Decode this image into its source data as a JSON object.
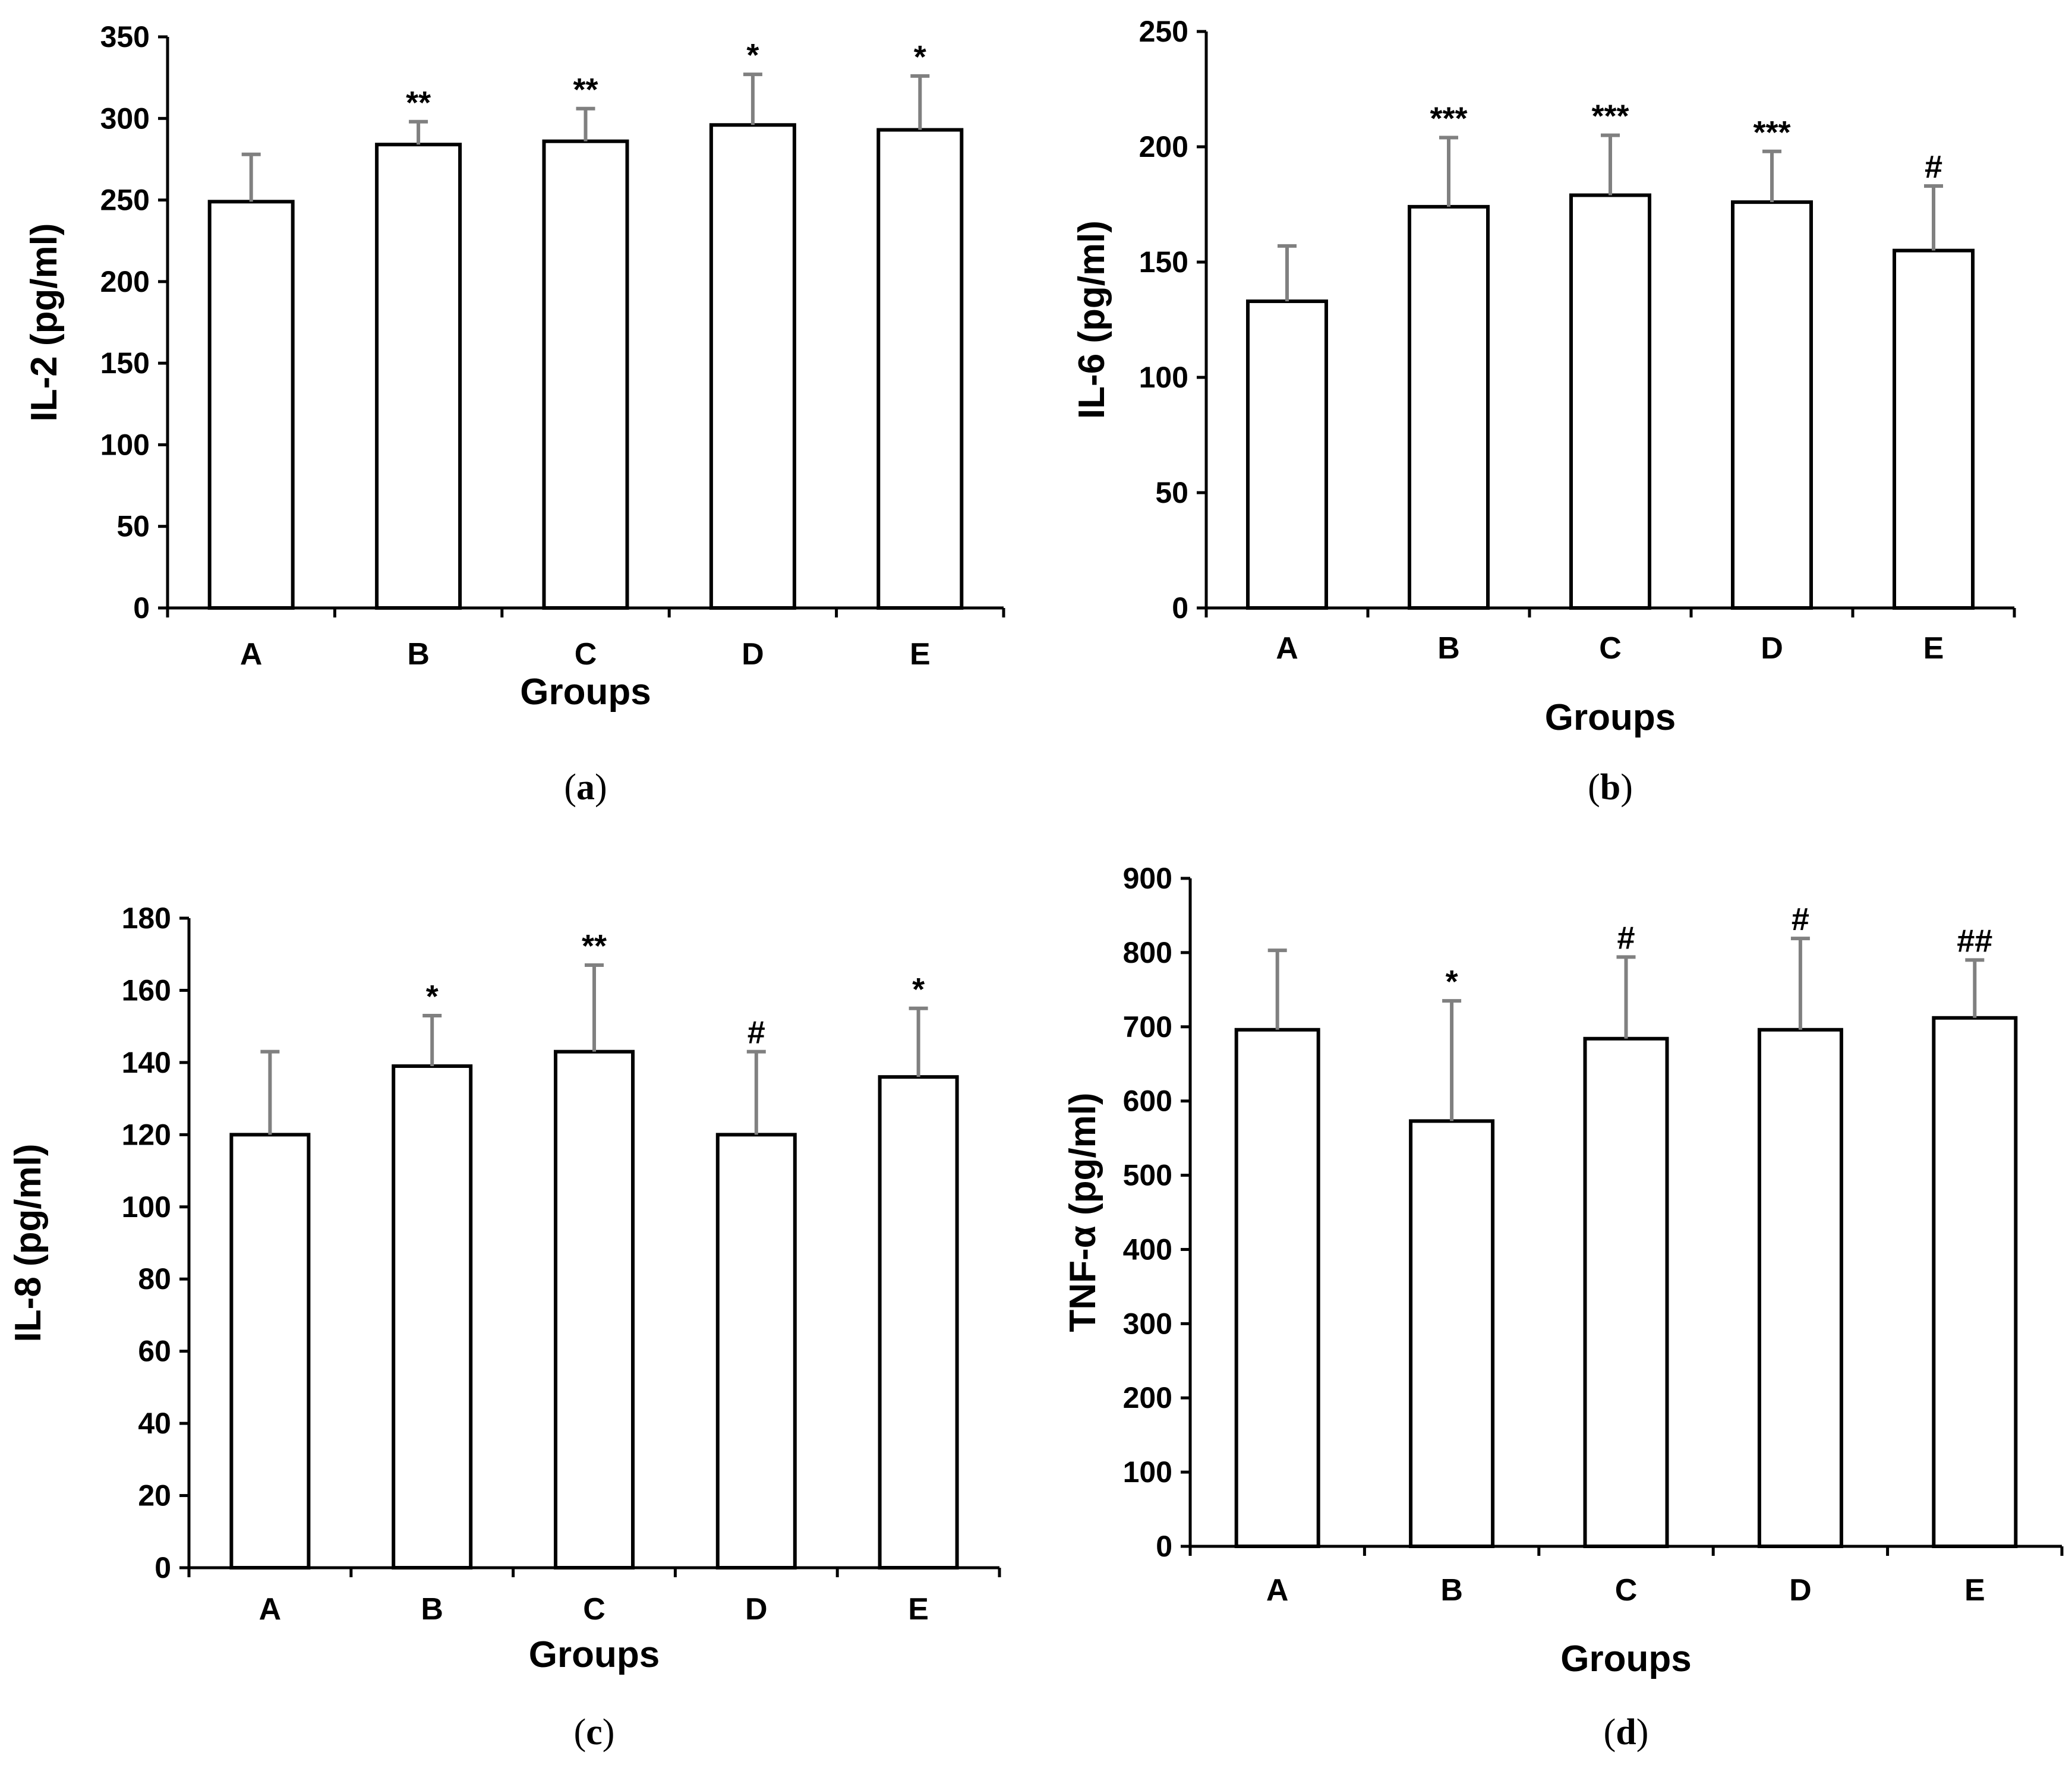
{
  "chart_data": [
    {
      "type": "bar",
      "panel": "a",
      "panel_label": "(a)",
      "title": "",
      "xlabel": "Groups",
      "ylabel": "IL-2 (pg/ml)",
      "categories": [
        "A",
        "B",
        "C",
        "D",
        "E"
      ],
      "values": [
        249,
        284,
        286,
        296,
        293
      ],
      "errors": [
        29,
        14,
        20,
        31,
        33
      ],
      "significance": [
        "",
        "**",
        "**",
        "*",
        "*"
      ],
      "ylim": [
        0,
        350
      ],
      "yticks": [
        0,
        50,
        100,
        150,
        200,
        250,
        300,
        350
      ],
      "grid": false
    },
    {
      "type": "bar",
      "panel": "b",
      "panel_label": "(b)",
      "title": "",
      "xlabel": "Groups",
      "ylabel": "IL-6 (pg/ml)",
      "categories": [
        "A",
        "B",
        "C",
        "D",
        "E"
      ],
      "values": [
        133,
        174,
        179,
        176,
        155
      ],
      "errors": [
        24,
        30,
        26,
        22,
        28
      ],
      "significance": [
        "",
        "***",
        "***",
        "***",
        "#"
      ],
      "ylim": [
        0,
        250
      ],
      "yticks": [
        0,
        50,
        100,
        150,
        200,
        250
      ],
      "grid": false
    },
    {
      "type": "bar",
      "panel": "c",
      "panel_label": "(c)",
      "title": "",
      "xlabel": "Groups",
      "ylabel": "IL-8 (pg/ml)",
      "categories": [
        "A",
        "B",
        "C",
        "D",
        "E"
      ],
      "values": [
        120,
        139,
        143,
        120,
        136
      ],
      "errors": [
        23,
        14,
        24,
        23,
        19
      ],
      "significance": [
        "",
        "*",
        "**",
        "#",
        "*"
      ],
      "ylim": [
        0,
        180
      ],
      "yticks": [
        0,
        20,
        40,
        60,
        80,
        100,
        120,
        140,
        160,
        180
      ],
      "grid": false
    },
    {
      "type": "bar",
      "panel": "d",
      "panel_label": "(d)",
      "title": "",
      "xlabel": "Groups",
      "ylabel": "TNF-α (pg/ml)",
      "categories": [
        "A",
        "B",
        "C",
        "D",
        "E"
      ],
      "values": [
        696,
        573,
        684,
        696,
        712
      ],
      "errors": [
        107,
        162,
        110,
        123,
        78
      ],
      "significance": [
        "",
        "*",
        "#",
        "#",
        "##"
      ],
      "ylim": [
        0,
        900
      ],
      "yticks": [
        0,
        100,
        200,
        300,
        400,
        500,
        600,
        700,
        800,
        900
      ],
      "grid": false
    }
  ],
  "colors": {
    "bar_fill": "#ffffff",
    "bar_stroke": "#000000",
    "error_bar": "#808080",
    "axis": "#000000"
  }
}
